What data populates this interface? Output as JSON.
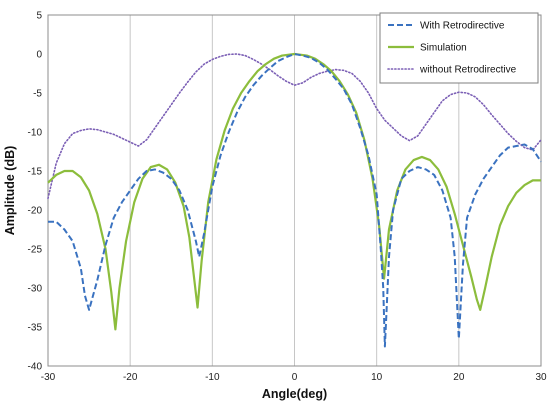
{
  "chart_data": {
    "type": "line",
    "title": "",
    "xlabel": "Angle(deg)",
    "ylabel": "Amplitude (dB)",
    "xlim": [
      -30,
      30
    ],
    "ylim": [
      -40,
      5
    ],
    "xticks": [
      -30,
      -20,
      -10,
      0,
      10,
      20,
      30
    ],
    "yticks": [
      5,
      0,
      -5,
      -10,
      -15,
      -20,
      -25,
      -30,
      -35,
      -40
    ],
    "grid": "vertical",
    "legend_position": "top-right",
    "series": [
      {
        "name": "With Retrodirective",
        "color": "#3a72c0",
        "style": "dashed",
        "points": [
          [
            -30,
            -21.5
          ],
          [
            -29,
            -21.5
          ],
          [
            -28,
            -22.5
          ],
          [
            -27,
            -24
          ],
          [
            -26,
            -27.5
          ],
          [
            -25.5,
            -31
          ],
          [
            -25,
            -32.8
          ],
          [
            -24,
            -29
          ],
          [
            -23,
            -24.5
          ],
          [
            -22,
            -21
          ],
          [
            -21,
            -19
          ],
          [
            -20,
            -17.5
          ],
          [
            -19,
            -16
          ],
          [
            -18,
            -15
          ],
          [
            -17,
            -14.8
          ],
          [
            -16,
            -15.2
          ],
          [
            -15,
            -16
          ],
          [
            -14,
            -17.5
          ],
          [
            -13,
            -20
          ],
          [
            -12,
            -24
          ],
          [
            -11.6,
            -26
          ],
          [
            -11,
            -23
          ],
          [
            -10,
            -17
          ],
          [
            -9,
            -13
          ],
          [
            -8,
            -10
          ],
          [
            -7,
            -7.5
          ],
          [
            -6,
            -5.5
          ],
          [
            -5,
            -4
          ],
          [
            -4,
            -2.8
          ],
          [
            -3,
            -1.8
          ],
          [
            -2,
            -0.9
          ],
          [
            -1,
            -0.4
          ],
          [
            0,
            0
          ],
          [
            1,
            -0.2
          ],
          [
            2,
            -0.5
          ],
          [
            3,
            -1.1
          ],
          [
            4,
            -2
          ],
          [
            5,
            -3.2
          ],
          [
            6,
            -4.5
          ],
          [
            7,
            -6.5
          ],
          [
            8,
            -9.5
          ],
          [
            9,
            -13
          ],
          [
            10,
            -18
          ],
          [
            10.5,
            -25
          ],
          [
            10.8,
            -30
          ],
          [
            11,
            -37.5
          ],
          [
            11.2,
            -33
          ],
          [
            11.5,
            -26
          ],
          [
            12,
            -20
          ],
          [
            13,
            -16
          ],
          [
            14,
            -15
          ],
          [
            15,
            -14.5
          ],
          [
            16,
            -14.8
          ],
          [
            17,
            -15.5
          ],
          [
            18,
            -17.5
          ],
          [
            19,
            -21
          ],
          [
            19.5,
            -26
          ],
          [
            20,
            -36.5
          ],
          [
            20.5,
            -27
          ],
          [
            21,
            -21
          ],
          [
            22,
            -18
          ],
          [
            23,
            -16
          ],
          [
            24,
            -14.5
          ],
          [
            25,
            -13
          ],
          [
            26,
            -12
          ],
          [
            27,
            -11.8
          ],
          [
            28,
            -11.6
          ],
          [
            29,
            -12.2
          ],
          [
            30,
            -13.8
          ]
        ]
      },
      {
        "name": "Simulation",
        "color": "#8cbd3c",
        "style": "solid",
        "points": [
          [
            -30,
            -16.5
          ],
          [
            -29,
            -15.5
          ],
          [
            -28,
            -15
          ],
          [
            -27,
            -15
          ],
          [
            -26,
            -15.8
          ],
          [
            -25,
            -17.5
          ],
          [
            -24,
            -20.5
          ],
          [
            -23,
            -25
          ],
          [
            -22.3,
            -30.5
          ],
          [
            -21.8,
            -35.3
          ],
          [
            -21.3,
            -30
          ],
          [
            -20.5,
            -24
          ],
          [
            -19.5,
            -19
          ],
          [
            -18.5,
            -16
          ],
          [
            -17.5,
            -14.5
          ],
          [
            -16.5,
            -14.2
          ],
          [
            -15.5,
            -14.8
          ],
          [
            -14.5,
            -16.5
          ],
          [
            -13.5,
            -19.5
          ],
          [
            -12.8,
            -23.5
          ],
          [
            -12.3,
            -28
          ],
          [
            -11.8,
            -32.5
          ],
          [
            -11.3,
            -26.5
          ],
          [
            -10.5,
            -19
          ],
          [
            -9.5,
            -13.5
          ],
          [
            -8.5,
            -9.8
          ],
          [
            -7.5,
            -7
          ],
          [
            -6.5,
            -5
          ],
          [
            -5.5,
            -3.5
          ],
          [
            -4.5,
            -2.2
          ],
          [
            -3.5,
            -1.3
          ],
          [
            -2.5,
            -0.6
          ],
          [
            -1.5,
            -0.2
          ],
          [
            0,
            0
          ],
          [
            1.5,
            -0.2
          ],
          [
            2.5,
            -0.6
          ],
          [
            3.5,
            -1.3
          ],
          [
            4.5,
            -2.2
          ],
          [
            5.5,
            -3.5
          ],
          [
            6.5,
            -5.2
          ],
          [
            7.5,
            -7.5
          ],
          [
            8.5,
            -11
          ],
          [
            9.5,
            -16
          ],
          [
            10.3,
            -22
          ],
          [
            10.9,
            -28.8
          ],
          [
            11.5,
            -22.5
          ],
          [
            12.5,
            -17.5
          ],
          [
            13.5,
            -14.8
          ],
          [
            14.5,
            -13.6
          ],
          [
            15.5,
            -13.2
          ],
          [
            16.5,
            -13.6
          ],
          [
            17.5,
            -14.8
          ],
          [
            18.5,
            -17
          ],
          [
            19.5,
            -20.5
          ],
          [
            20.5,
            -24.5
          ],
          [
            21.5,
            -28.5
          ],
          [
            22.2,
            -31.5
          ],
          [
            22.6,
            -32.8
          ],
          [
            23.2,
            -30
          ],
          [
            24,
            -26
          ],
          [
            25,
            -22
          ],
          [
            26,
            -19.5
          ],
          [
            27,
            -17.8
          ],
          [
            28,
            -16.8
          ],
          [
            29,
            -16.2
          ],
          [
            30,
            -16.2
          ]
        ]
      },
      {
        "name": "without Retrodirective",
        "color": "#7b5fb5",
        "style": "dotted",
        "points": [
          [
            -30,
            -18.5
          ],
          [
            -29,
            -14
          ],
          [
            -28,
            -11.5
          ],
          [
            -27,
            -10.2
          ],
          [
            -26,
            -9.8
          ],
          [
            -25,
            -9.6
          ],
          [
            -24,
            -9.7
          ],
          [
            -23,
            -10
          ],
          [
            -22,
            -10.3
          ],
          [
            -21,
            -10.8
          ],
          [
            -20,
            -11.3
          ],
          [
            -19,
            -11.8
          ],
          [
            -18,
            -11
          ],
          [
            -17,
            -9.5
          ],
          [
            -16,
            -8
          ],
          [
            -15,
            -6.5
          ],
          [
            -14,
            -5
          ],
          [
            -13,
            -3.6
          ],
          [
            -12,
            -2.3
          ],
          [
            -11,
            -1.3
          ],
          [
            -10,
            -0.7
          ],
          [
            -9,
            -0.3
          ],
          [
            -8,
            -0.05
          ],
          [
            -7,
            0
          ],
          [
            -6,
            -0.2
          ],
          [
            -5,
            -0.7
          ],
          [
            -4,
            -1.3
          ],
          [
            -3,
            -2
          ],
          [
            -2,
            -2.8
          ],
          [
            -1,
            -3.5
          ],
          [
            0,
            -4
          ],
          [
            1,
            -3.7
          ],
          [
            2,
            -3
          ],
          [
            3,
            -2.5
          ],
          [
            4,
            -2.2
          ],
          [
            5,
            -2
          ],
          [
            6,
            -2.1
          ],
          [
            7,
            -2.5
          ],
          [
            8,
            -3.5
          ],
          [
            9,
            -5
          ],
          [
            10,
            -7
          ],
          [
            11,
            -8.5
          ],
          [
            12,
            -9.5
          ],
          [
            13,
            -10.5
          ],
          [
            14,
            -11.1
          ],
          [
            15,
            -10.5
          ],
          [
            16,
            -9
          ],
          [
            17,
            -7.5
          ],
          [
            18,
            -6
          ],
          [
            19,
            -5.2
          ],
          [
            20,
            -4.9
          ],
          [
            21,
            -5
          ],
          [
            22,
            -5.5
          ],
          [
            23,
            -6.5
          ],
          [
            24,
            -7.8
          ],
          [
            25,
            -9
          ],
          [
            26,
            -10.2
          ],
          [
            27,
            -11.2
          ],
          [
            28,
            -12
          ],
          [
            29,
            -12.3
          ],
          [
            30,
            -11
          ]
        ]
      }
    ]
  }
}
